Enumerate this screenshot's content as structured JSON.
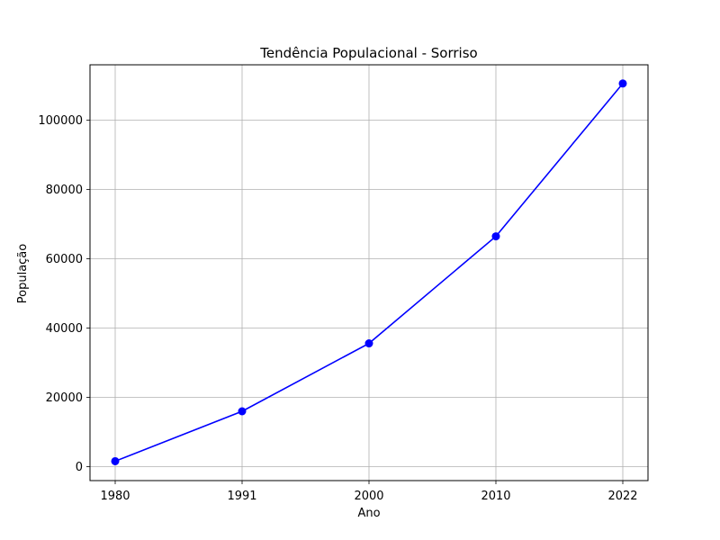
{
  "chart_data": {
    "type": "line",
    "title": "Tendência Populacional - Sorriso",
    "xlabel": "Ano",
    "ylabel": "População",
    "categories": [
      "1980",
      "1991",
      "2000",
      "2010",
      "2022"
    ],
    "series": [
      {
        "values": [
          1600,
          16000,
          35600,
          66500,
          110600
        ]
      }
    ],
    "yticks": [
      0,
      20000,
      40000,
      60000,
      80000,
      100000
    ],
    "ylim": [
      -4000,
      116000
    ],
    "grid": true,
    "line_color": "#0000ff",
    "marker": "circle"
  }
}
